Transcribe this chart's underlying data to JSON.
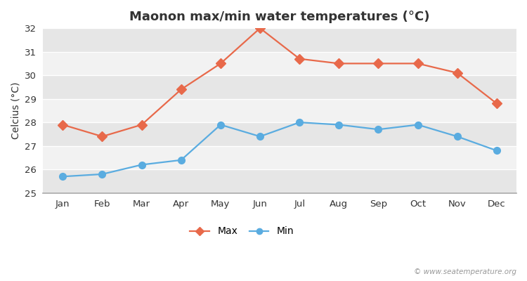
{
  "months": [
    "Jan",
    "Feb",
    "Mar",
    "Apr",
    "May",
    "Jun",
    "Jul",
    "Aug",
    "Sep",
    "Oct",
    "Nov",
    "Dec"
  ],
  "max_temps": [
    27.9,
    27.4,
    27.9,
    29.4,
    30.5,
    32.0,
    30.7,
    30.5,
    30.5,
    30.5,
    30.1,
    28.8
  ],
  "min_temps": [
    25.7,
    25.8,
    26.2,
    26.4,
    27.9,
    27.4,
    28.0,
    27.9,
    27.7,
    27.9,
    27.4,
    26.8
  ],
  "max_color": "#e8694a",
  "min_color": "#5aace0",
  "title": "Maonon max/min water temperatures (°C)",
  "ylabel": "Celcius (°C)",
  "ylim": [
    25,
    32
  ],
  "yticks": [
    25,
    26,
    27,
    28,
    29,
    30,
    31,
    32
  ],
  "bg_color": "#ffffff",
  "band_light": "#f2f2f2",
  "band_dark": "#e6e6e6",
  "watermark": "© www.seatemperature.org",
  "title_fontsize": 13,
  "label_fontsize": 10,
  "tick_fontsize": 9.5,
  "legend_labels": [
    "Max",
    "Min"
  ],
  "max_marker": "D",
  "min_marker": "o"
}
